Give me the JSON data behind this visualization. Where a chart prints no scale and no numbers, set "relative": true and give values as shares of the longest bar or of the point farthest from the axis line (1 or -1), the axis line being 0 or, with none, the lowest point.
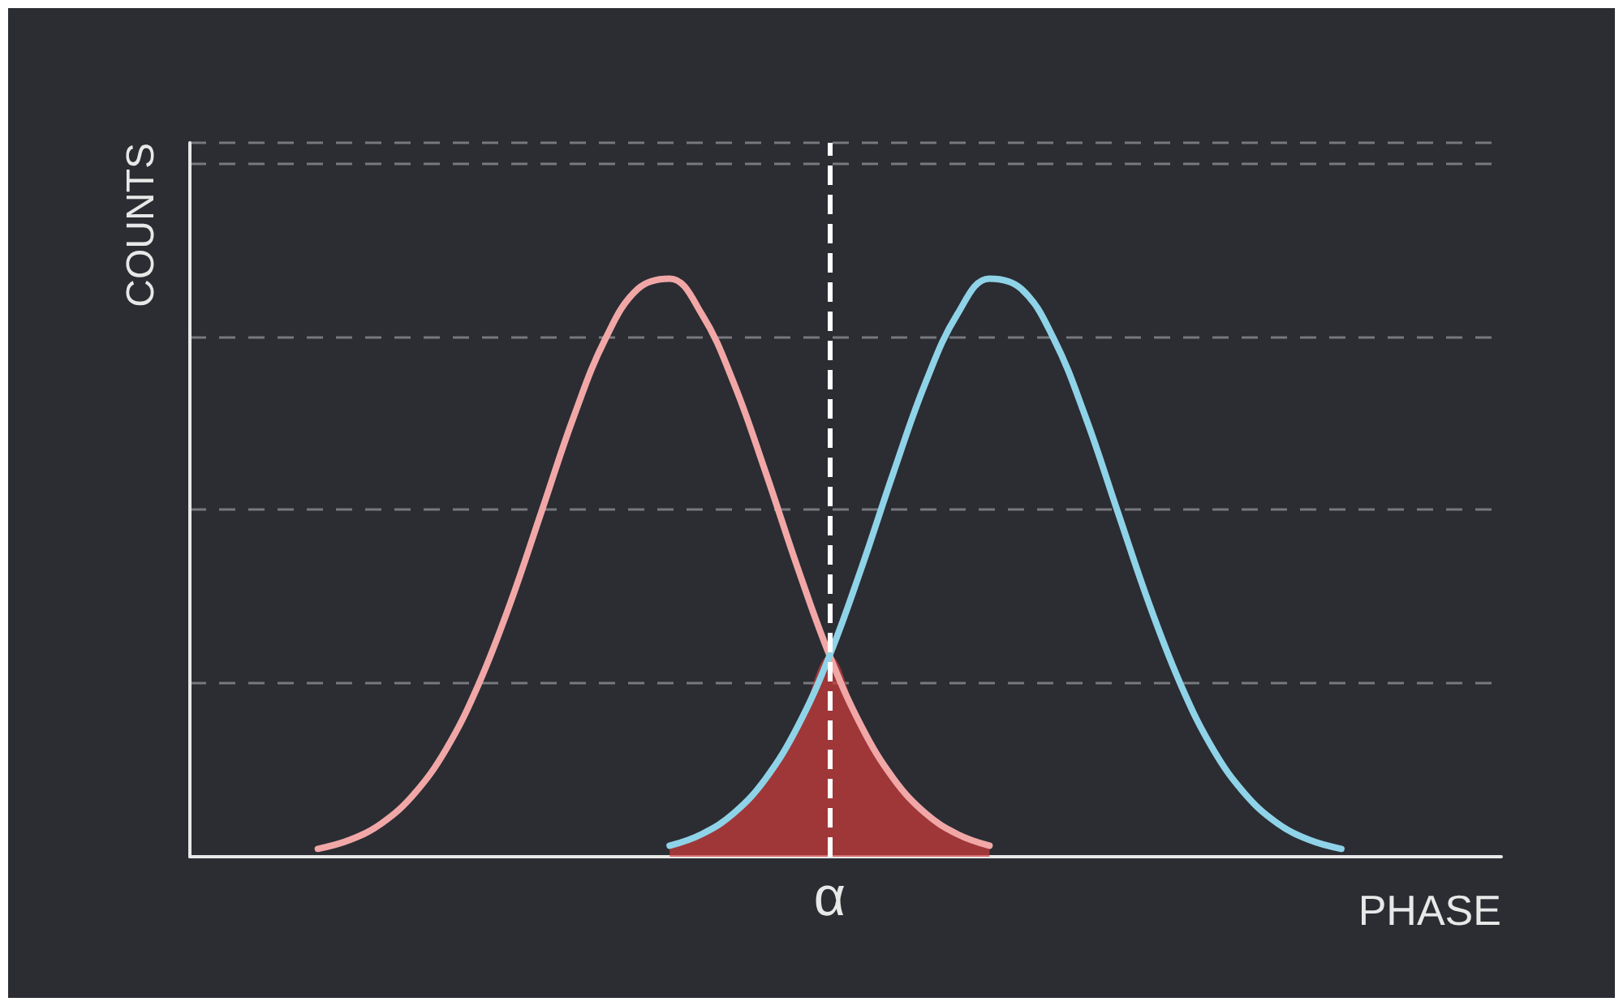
{
  "chart_data": {
    "type": "line",
    "xlabel": "PHASE",
    "ylabel": "COUNTS",
    "relative": true,
    "grid": "y",
    "marker": "none",
    "line_style": "solid",
    "categories": [
      null,
      null,
      null,
      null,
      null,
      null,
      null,
      null,
      null,
      null,
      null,
      null,
      null,
      null,
      null,
      null,
      null,
      null,
      null,
      null,
      null,
      null,
      null,
      null,
      null,
      null,
      null,
      null,
      null,
      null,
      null,
      null,
      null,
      null,
      null,
      null,
      null,
      null,
      null,
      null,
      null,
      null
    ],
    "series": [
      {
        "color": "#f2a7a7",
        "values": [
          null,
          null,
          null,
          null,
          0.0136,
          0.029,
          0.058,
          0.108,
          0.185,
          0.295,
          0.436,
          0.598,
          0.761,
          0.897,
          0.982,
          1,
          0.939,
          0.82,
          0.665,
          0.5,
          0.348,
          0.225,
          0.135,
          0.075,
          0.039,
          0.019,
          null,
          null,
          null,
          null,
          null,
          null,
          null,
          null,
          null,
          null,
          null,
          null,
          null,
          null,
          null,
          null
        ]
      },
      {
        "color": "#8fd3e8",
        "values": [
          null,
          null,
          null,
          null,
          null,
          null,
          null,
          null,
          null,
          null,
          null,
          null,
          null,
          null,
          null,
          0.019,
          0.039,
          0.075,
          0.135,
          0.225,
          0.348,
          0.5,
          0.665,
          0.82,
          0.939,
          1,
          0.982,
          0.897,
          0.761,
          0.598,
          0.436,
          0.295,
          0.185,
          0.108,
          0.058,
          0.029,
          0.0136,
          null,
          null,
          null,
          null,
          null
        ]
      },
      {
        "type": "area",
        "color": "#d23c3c",
        "values": [
          null,
          null,
          null,
          null,
          null,
          null,
          null,
          null,
          null,
          null,
          null,
          null,
          null,
          null,
          null,
          0.019,
          0.039,
          0.075,
          0.135,
          0.225,
          0.348,
          0.225,
          0.135,
          0.075,
          0.039,
          0.019,
          null,
          null,
          null,
          null,
          null,
          null,
          null,
          null,
          null,
          null,
          null,
          null,
          null,
          null,
          null,
          null
        ]
      }
    ],
    "annotations": [
      "α"
    ]
  }
}
